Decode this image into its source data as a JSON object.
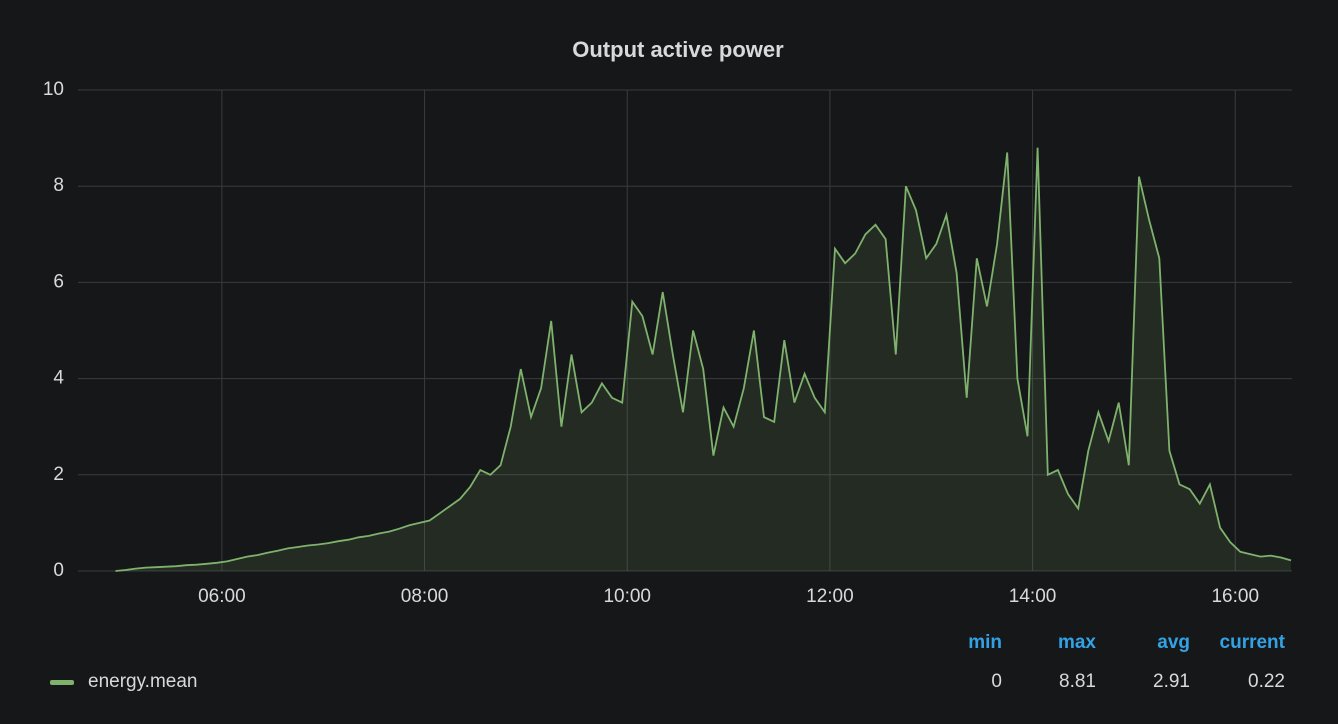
{
  "chart_data": {
    "type": "area",
    "title": "Output active power",
    "x": [
      4.95,
      5.05,
      5.15,
      5.25,
      5.35,
      5.45,
      5.55,
      5.65,
      5.75,
      5.85,
      5.95,
      6.05,
      6.15,
      6.25,
      6.35,
      6.45,
      6.55,
      6.65,
      6.75,
      6.85,
      6.95,
      7.05,
      7.15,
      7.25,
      7.35,
      7.45,
      7.55,
      7.65,
      7.75,
      7.85,
      7.95,
      8.05,
      8.15,
      8.25,
      8.35,
      8.45,
      8.55,
      8.65,
      8.75,
      8.85,
      8.95,
      9.05,
      9.15,
      9.25,
      9.35,
      9.45,
      9.55,
      9.65,
      9.75,
      9.85,
      9.95,
      10.05,
      10.15,
      10.25,
      10.35,
      10.45,
      10.55,
      10.65,
      10.75,
      10.85,
      10.95,
      11.05,
      11.15,
      11.25,
      11.35,
      11.45,
      11.55,
      11.65,
      11.75,
      11.85,
      11.95,
      12.05,
      12.15,
      12.25,
      12.35,
      12.45,
      12.55,
      12.65,
      12.75,
      12.85,
      12.95,
      13.05,
      13.15,
      13.25,
      13.35,
      13.45,
      13.55,
      13.65,
      13.75,
      13.85,
      13.95,
      14.05,
      14.15,
      14.25,
      14.35,
      14.45,
      14.55,
      14.65,
      14.75,
      14.85,
      14.95,
      15.05,
      15.15,
      15.25,
      15.35,
      15.45,
      15.55,
      15.65,
      15.75,
      15.85,
      15.95,
      16.05,
      16.15,
      16.25,
      16.35,
      16.45,
      16.55
    ],
    "series": [
      {
        "name": "energy.mean",
        "color": "#7eb26d",
        "values": [
          0,
          0.02,
          0.05,
          0.07,
          0.08,
          0.09,
          0.1,
          0.12,
          0.13,
          0.15,
          0.17,
          0.2,
          0.25,
          0.3,
          0.33,
          0.38,
          0.42,
          0.47,
          0.5,
          0.53,
          0.55,
          0.58,
          0.62,
          0.65,
          0.7,
          0.73,
          0.78,
          0.82,
          0.88,
          0.95,
          1.0,
          1.05,
          1.2,
          1.35,
          1.5,
          1.75,
          2.1,
          2.0,
          2.2,
          3.0,
          4.2,
          3.2,
          3.8,
          5.2,
          3.0,
          4.5,
          3.3,
          3.5,
          3.9,
          3.6,
          3.5,
          5.6,
          5.3,
          4.5,
          5.8,
          4.5,
          3.3,
          5.0,
          4.2,
          2.4,
          3.4,
          3.0,
          3.8,
          5.0,
          3.2,
          3.1,
          4.8,
          3.5,
          4.1,
          3.6,
          3.3,
          6.7,
          6.4,
          6.6,
          7.0,
          7.2,
          6.9,
          4.5,
          8.0,
          7.5,
          6.5,
          6.8,
          7.4,
          6.2,
          3.6,
          6.5,
          5.5,
          6.8,
          8.7,
          4.0,
          2.8,
          8.8,
          2.0,
          2.1,
          1.6,
          1.3,
          2.5,
          3.3,
          2.7,
          3.5,
          2.2,
          8.2,
          7.3,
          6.5,
          2.5,
          1.8,
          1.7,
          1.4,
          1.8,
          0.9,
          0.6,
          0.4,
          0.35,
          0.3,
          0.32,
          0.28,
          0.22
        ]
      }
    ],
    "xlim": [
      4.58,
      16.56
    ],
    "xticks": [
      {
        "value": 6,
        "label": "06:00"
      },
      {
        "value": 8,
        "label": "08:00"
      },
      {
        "value": 10,
        "label": "10:00"
      },
      {
        "value": 12,
        "label": "12:00"
      },
      {
        "value": 14,
        "label": "14:00"
      },
      {
        "value": 16,
        "label": "16:00"
      }
    ],
    "ylim": [
      0,
      10
    ],
    "yticks": [
      0,
      2,
      4,
      6,
      8,
      10
    ],
    "grid": true,
    "legend": {
      "headers": [
        "min",
        "max",
        "avg",
        "current"
      ],
      "stats": [
        "0",
        "8.81",
        "2.91",
        "0.22"
      ]
    }
  }
}
